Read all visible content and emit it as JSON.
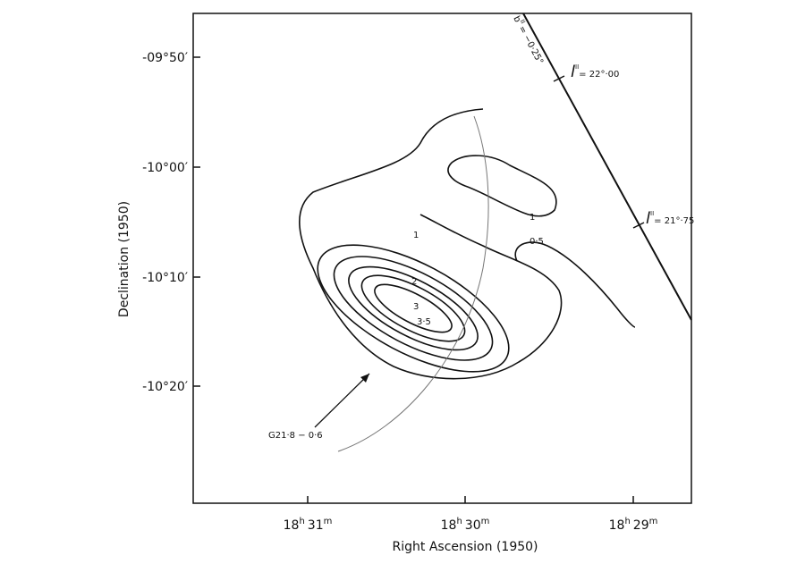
{
  "figure": {
    "y_axis": {
      "label": "Declination (1950)",
      "ticks": [
        "-09°50′",
        "-10°00′",
        "-10°10′",
        "-10°20′"
      ]
    },
    "x_axis": {
      "label": "Right Ascension (1950)",
      "ticks": [
        [
          "18",
          "h",
          "31",
          "m"
        ],
        [
          "18",
          "h",
          "30",
          "m"
        ],
        [
          "18",
          "h",
          "29",
          "m"
        ]
      ]
    },
    "contour_labels": [
      "1",
      "2",
      "3",
      "3·5",
      "1",
      "0·5"
    ],
    "source_label": "G21·8 − 0·6",
    "galactic": {
      "b_label": [
        "b",
        "II",
        "= −0·25°"
      ],
      "l_labels": [
        [
          "l",
          "II",
          "= 22°·00"
        ],
        [
          "l",
          "II",
          "= 21°·75"
        ]
      ]
    }
  }
}
